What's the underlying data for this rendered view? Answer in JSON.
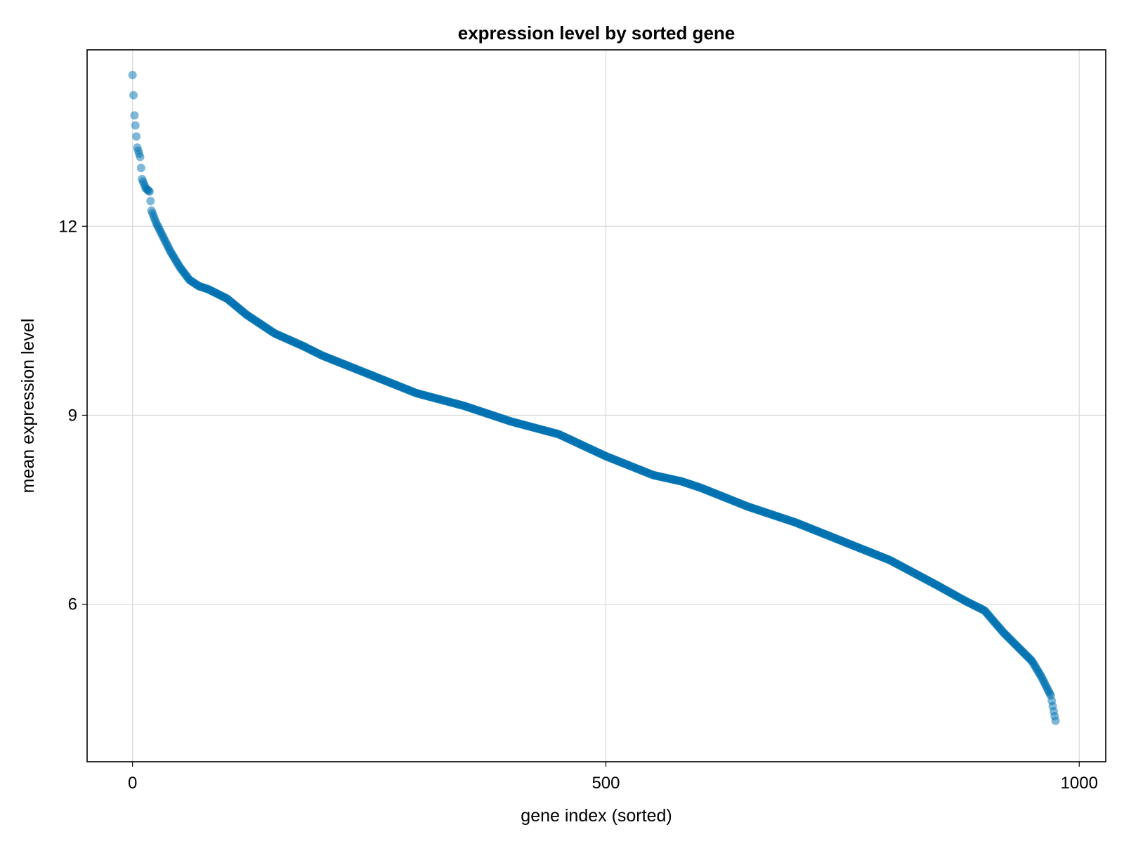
{
  "chart_data": {
    "type": "scatter",
    "title": "expression level by sorted gene",
    "xlabel": "gene index (sorted)",
    "ylabel": "mean expression level",
    "xlim": [
      -48,
      1028
    ],
    "ylim": [
      3.5,
      14.8
    ],
    "xticks": [
      0,
      500,
      1000
    ],
    "yticks": [
      6,
      9,
      12
    ],
    "xtick_labels": [
      "0",
      "500",
      "1000"
    ],
    "ytick_labels": [
      "6",
      "9",
      "12"
    ],
    "grid": true,
    "marker_color": "#0072B2",
    "marker_opacity": 0.5,
    "n_points": 976,
    "curve_knots": {
      "x": [
        0,
        1,
        2,
        3,
        5,
        8,
        10,
        14,
        18,
        20,
        25,
        30,
        40,
        50,
        60,
        70,
        80,
        100,
        120,
        150,
        180,
        200,
        250,
        300,
        350,
        380,
        400,
        450,
        500,
        550,
        580,
        600,
        650,
        700,
        750,
        800,
        850,
        880,
        900,
        920,
        940,
        950,
        960,
        965,
        970,
        973,
        975
      ],
      "y": [
        14.4,
        14.08,
        13.76,
        13.6,
        13.25,
        13.1,
        12.75,
        12.6,
        12.55,
        12.25,
        12.05,
        11.9,
        11.6,
        11.35,
        11.15,
        11.05,
        11.0,
        10.85,
        10.6,
        10.3,
        10.1,
        9.95,
        9.65,
        9.35,
        9.15,
        9.0,
        8.9,
        8.7,
        8.35,
        8.05,
        7.95,
        7.85,
        7.55,
        7.3,
        7.0,
        6.7,
        6.3,
        6.05,
        5.9,
        5.55,
        5.25,
        5.1,
        4.85,
        4.7,
        4.55,
        4.3,
        4.15
      ]
    }
  }
}
